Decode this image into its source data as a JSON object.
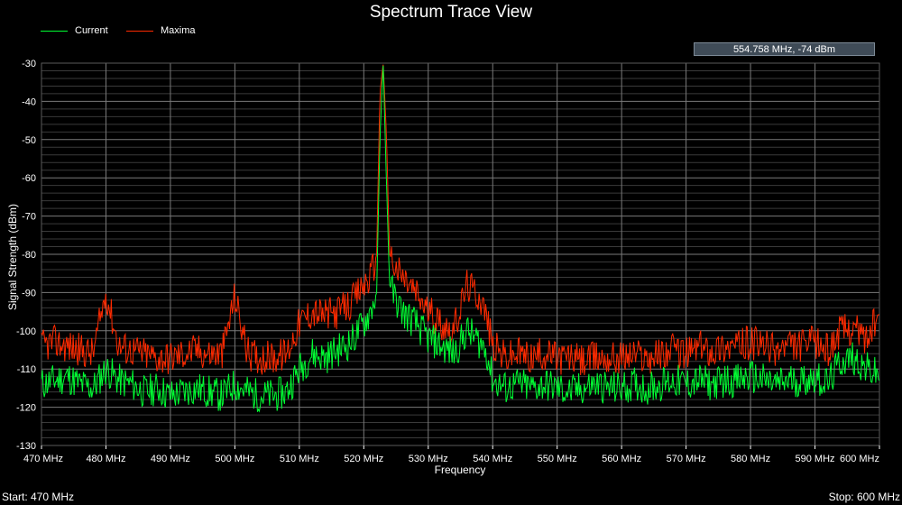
{
  "window": {
    "title": "Spectrum Trace View"
  },
  "legend": [
    {
      "label": "Current",
      "color": "#00ff33"
    },
    {
      "label": "Maxima",
      "color": "#ff2a00"
    }
  ],
  "readout": {
    "text": "554.758 MHz,   -74 dBm"
  },
  "status": {
    "start": "Start: 470 MHz",
    "stop": "Stop: 600 MHz"
  },
  "colors": {
    "grid": "#5a5a5a",
    "current": "#00ff33",
    "maxima": "#ff2a00",
    "background": "#000000"
  },
  "chart_data": {
    "type": "line",
    "title": "Spectrum Trace View",
    "xlabel": "Frequency",
    "ylabel": "Signal Strength (dBm)",
    "xlim": [
      470,
      600
    ],
    "ylim": [
      -130,
      -30
    ],
    "x_ticks": [
      470,
      480,
      490,
      500,
      510,
      520,
      530,
      540,
      550,
      560,
      570,
      580,
      590,
      600
    ],
    "x_tick_labels": [
      "470 MHz",
      "480 MHz",
      "490 MHz",
      "500 MHz",
      "510 MHz",
      "520 MHz",
      "530 MHz",
      "540 MHz",
      "550 MHz",
      "560 MHz",
      "570 MHz",
      "580 MHz",
      "590 MHz",
      "600 MHz"
    ],
    "y_ticks": [
      -30,
      -40,
      -50,
      -60,
      -70,
      -80,
      -90,
      -100,
      -110,
      -120,
      -130
    ],
    "grid": true,
    "legend_position": "top-left",
    "series": [
      {
        "name": "Current",
        "color": "#00ff33",
        "x": [
          470,
          472,
          474,
          476,
          478,
          480,
          482,
          484,
          486,
          488,
          490,
          492,
          494,
          496,
          498,
          500,
          502,
          504,
          506,
          508,
          510,
          512,
          514,
          516,
          518,
          520,
          521,
          522,
          522.5,
          523,
          523.5,
          524,
          525,
          526,
          528,
          530,
          532,
          534,
          536,
          538,
          539,
          540,
          542,
          544,
          546,
          548,
          550,
          552,
          554,
          556,
          558,
          560,
          562,
          564,
          566,
          568,
          570,
          572,
          574,
          576,
          578,
          580,
          582,
          584,
          586,
          588,
          590,
          592,
          594,
          596,
          598,
          600
        ],
        "values": [
          -114,
          -113,
          -112,
          -114,
          -115,
          -110,
          -113,
          -114,
          -116,
          -115,
          -117,
          -116,
          -115,
          -116,
          -117,
          -114,
          -116,
          -117,
          -117,
          -116,
          -110,
          -106,
          -107,
          -105,
          -103,
          -98,
          -95,
          -90,
          -50,
          -30,
          -60,
          -88,
          -92,
          -95,
          -98,
          -102,
          -104,
          -106,
          -100,
          -103,
          -105,
          -113,
          -115,
          -114,
          -115,
          -114,
          -115,
          -116,
          -115,
          -114,
          -115,
          -115,
          -114,
          -115,
          -114,
          -113,
          -114,
          -113,
          -114,
          -113,
          -113,
          -112,
          -113,
          -114,
          -113,
          -113,
          -112,
          -114,
          -108,
          -107,
          -110,
          -112
        ]
      },
      {
        "name": "Maxima",
        "color": "#ff2a00",
        "x": [
          470,
          472,
          474,
          476,
          478,
          480,
          482,
          484,
          486,
          488,
          490,
          492,
          494,
          496,
          498,
          500,
          502,
          504,
          506,
          508,
          510,
          512,
          514,
          516,
          518,
          520,
          521,
          522,
          522.5,
          523,
          523.5,
          524,
          525,
          526,
          528,
          530,
          532,
          534,
          536,
          538,
          539,
          540,
          542,
          544,
          546,
          548,
          550,
          552,
          554,
          556,
          558,
          560,
          562,
          564,
          566,
          568,
          570,
          572,
          574,
          576,
          578,
          580,
          582,
          584,
          586,
          588,
          590,
          592,
          594,
          596,
          598,
          600
        ],
        "values": [
          -104,
          -103,
          -104,
          -105,
          -106,
          -90,
          -104,
          -105,
          -106,
          -107,
          -107,
          -106,
          -105,
          -106,
          -106,
          -91,
          -106,
          -107,
          -107,
          -106,
          -98,
          -95,
          -96,
          -95,
          -93,
          -88,
          -86,
          -80,
          -38,
          -30,
          -48,
          -80,
          -84,
          -86,
          -90,
          -95,
          -98,
          -100,
          -88,
          -91,
          -96,
          -104,
          -107,
          -106,
          -107,
          -106,
          -107,
          -107,
          -108,
          -107,
          -107,
          -107,
          -106,
          -107,
          -106,
          -105,
          -106,
          -104,
          -105,
          -104,
          -104,
          -103,
          -104,
          -105,
          -104,
          -104,
          -103,
          -105,
          -100,
          -99,
          -102,
          -96
        ]
      }
    ]
  }
}
